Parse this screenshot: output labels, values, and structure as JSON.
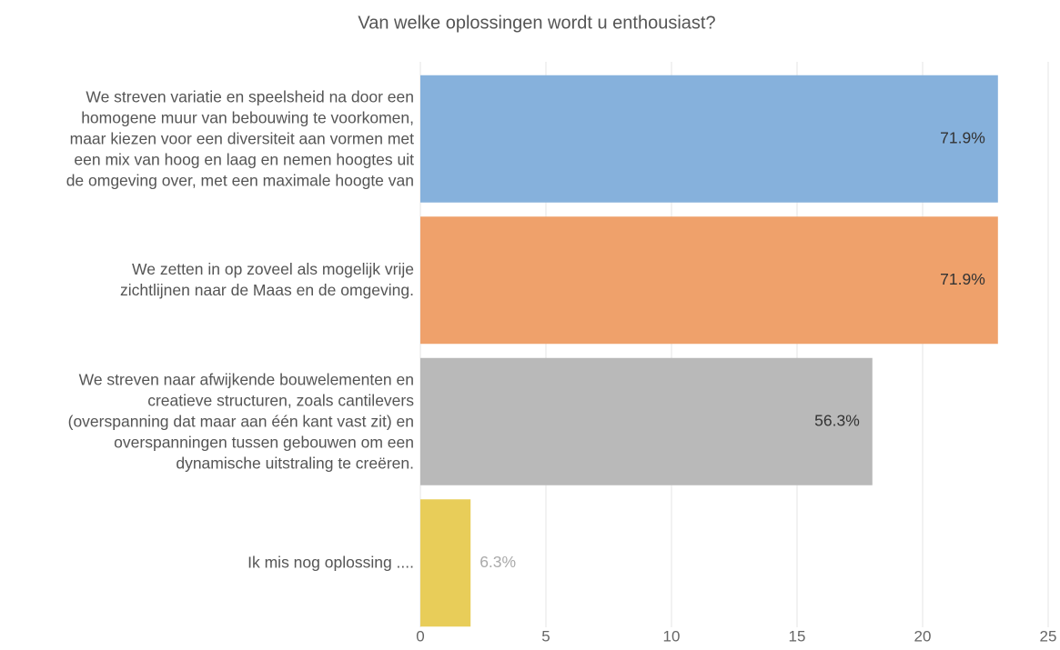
{
  "chart_data": {
    "type": "bar",
    "orientation": "horizontal",
    "title": "Van welke oplossingen wordt u enthousiast?",
    "categories": [
      "We streven variatie en speelsheid na door een\nhomogene muur van bebouwing te voorkomen,\nmaar kiezen voor een diversiteit aan vormen met\neen mix van hoog en laag en nemen hoogtes uit\nde omgeving over, met een maximale hoogte van",
      "We zetten in op zoveel als mogelijk vrije\nzichtlijnen naar de Maas en de omgeving.",
      "We streven naar afwijkende bouwelementen en\ncreatieve structuren, zoals cantilevers\n(overspanning dat maar aan één kant vast zit) en\noverspanningen tussen gebouwen om een\ndynamische uitstraling te creëren.",
      "Ik mis nog oplossing ...."
    ],
    "values": [
      23,
      23,
      18,
      2
    ],
    "value_labels": [
      "71.9%",
      "71.9%",
      "56.3%",
      "6.3%"
    ],
    "colors": [
      "#86b1dc",
      "#efa16b",
      "#b9b9b9",
      "#e8cd59"
    ],
    "xlim": [
      0,
      25
    ],
    "xticks": [
      0,
      5,
      10,
      15,
      20,
      25
    ],
    "grid": true
  }
}
